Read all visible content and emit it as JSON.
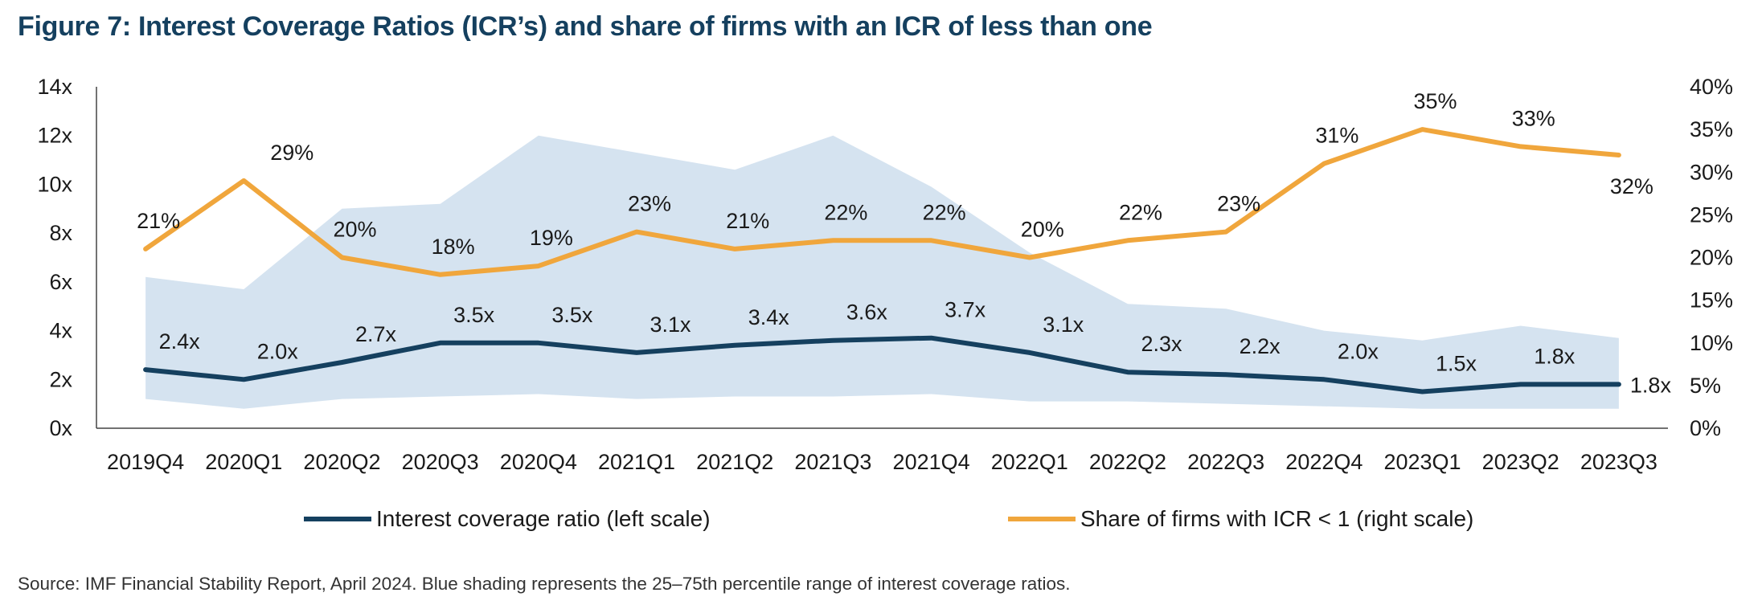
{
  "title": "Figure 7: Interest Coverage Ratios (ICR’s) and share of firms with an ICR of less than one",
  "source": "Source: IMF Financial Stability Report, April 2024. Blue shading represents the 25–75th percentile range of interest coverage ratios.",
  "colors": {
    "icr": "#15405f",
    "share": "#f0a63c",
    "band": "#d5e3f0",
    "axis": "#444444"
  },
  "chart_data": {
    "type": "line",
    "x": [
      "2019Q4",
      "2020Q1",
      "2020Q2",
      "2020Q3",
      "2020Q4",
      "2021Q1",
      "2021Q2",
      "2021Q3",
      "2021Q4",
      "2022Q1",
      "2022Q2",
      "2022Q3",
      "2022Q4",
      "2023Q1",
      "2023Q2",
      "2023Q3"
    ],
    "y_left": {
      "ylim": [
        0,
        14
      ],
      "ticks": [
        0,
        2,
        4,
        6,
        8,
        10,
        12,
        14
      ],
      "tick_labels": [
        "0x",
        "2x",
        "4x",
        "6x",
        "8x",
        "10x",
        "12x",
        "14x"
      ]
    },
    "y_right": {
      "ylim": [
        0,
        40
      ],
      "ticks": [
        0,
        5,
        10,
        15,
        20,
        25,
        30,
        35,
        40
      ],
      "tick_labels": [
        "0%",
        "5%",
        "10%",
        "15%",
        "20%",
        "25%",
        "30%",
        "35%",
        "40%"
      ]
    },
    "band": {
      "lower": [
        1.2,
        0.8,
        1.2,
        1.3,
        1.4,
        1.2,
        1.3,
        1.3,
        1.4,
        1.1,
        1.1,
        1.0,
        0.9,
        0.8,
        0.8,
        0.8
      ],
      "upper": [
        6.2,
        5.7,
        9.0,
        9.2,
        12.0,
        11.3,
        10.6,
        12.0,
        9.9,
        7.2,
        5.1,
        4.9,
        4.0,
        3.6,
        4.2,
        3.7
      ]
    },
    "series": [
      {
        "name": "Interest coverage ratio (left scale)",
        "axis": "left",
        "values": [
          2.4,
          2.0,
          2.7,
          3.5,
          3.5,
          3.1,
          3.4,
          3.6,
          3.7,
          3.1,
          2.3,
          2.2,
          2.0,
          1.5,
          1.8,
          1.8
        ],
        "labels": [
          "2.4x",
          "2.0x",
          "2.7x",
          "3.5x",
          "3.5x",
          "3.1x",
          "3.4x",
          "3.6x",
          "3.7x",
          "3.1x",
          "2.3x",
          "2.2x",
          "2.0x",
          "1.5x",
          "1.8x",
          "1.8x"
        ]
      },
      {
        "name": "Share of firms with ICR < 1 (right scale)",
        "axis": "right",
        "values": [
          21,
          29,
          20,
          18,
          19,
          23,
          21,
          22,
          22,
          20,
          22,
          23,
          31,
          35,
          33,
          32
        ],
        "labels": [
          "21%",
          "29%",
          "20%",
          "18%",
          "19%",
          "23%",
          "21%",
          "22%",
          "22%",
          "20%",
          "22%",
          "23%",
          "31%",
          "35%",
          "33%",
          "32%"
        ]
      }
    ],
    "legend": [
      "Interest coverage ratio (left scale)",
      "Share of firms with ICR < 1 (right scale)"
    ],
    "legend_position": "bottom",
    "grid": false
  }
}
